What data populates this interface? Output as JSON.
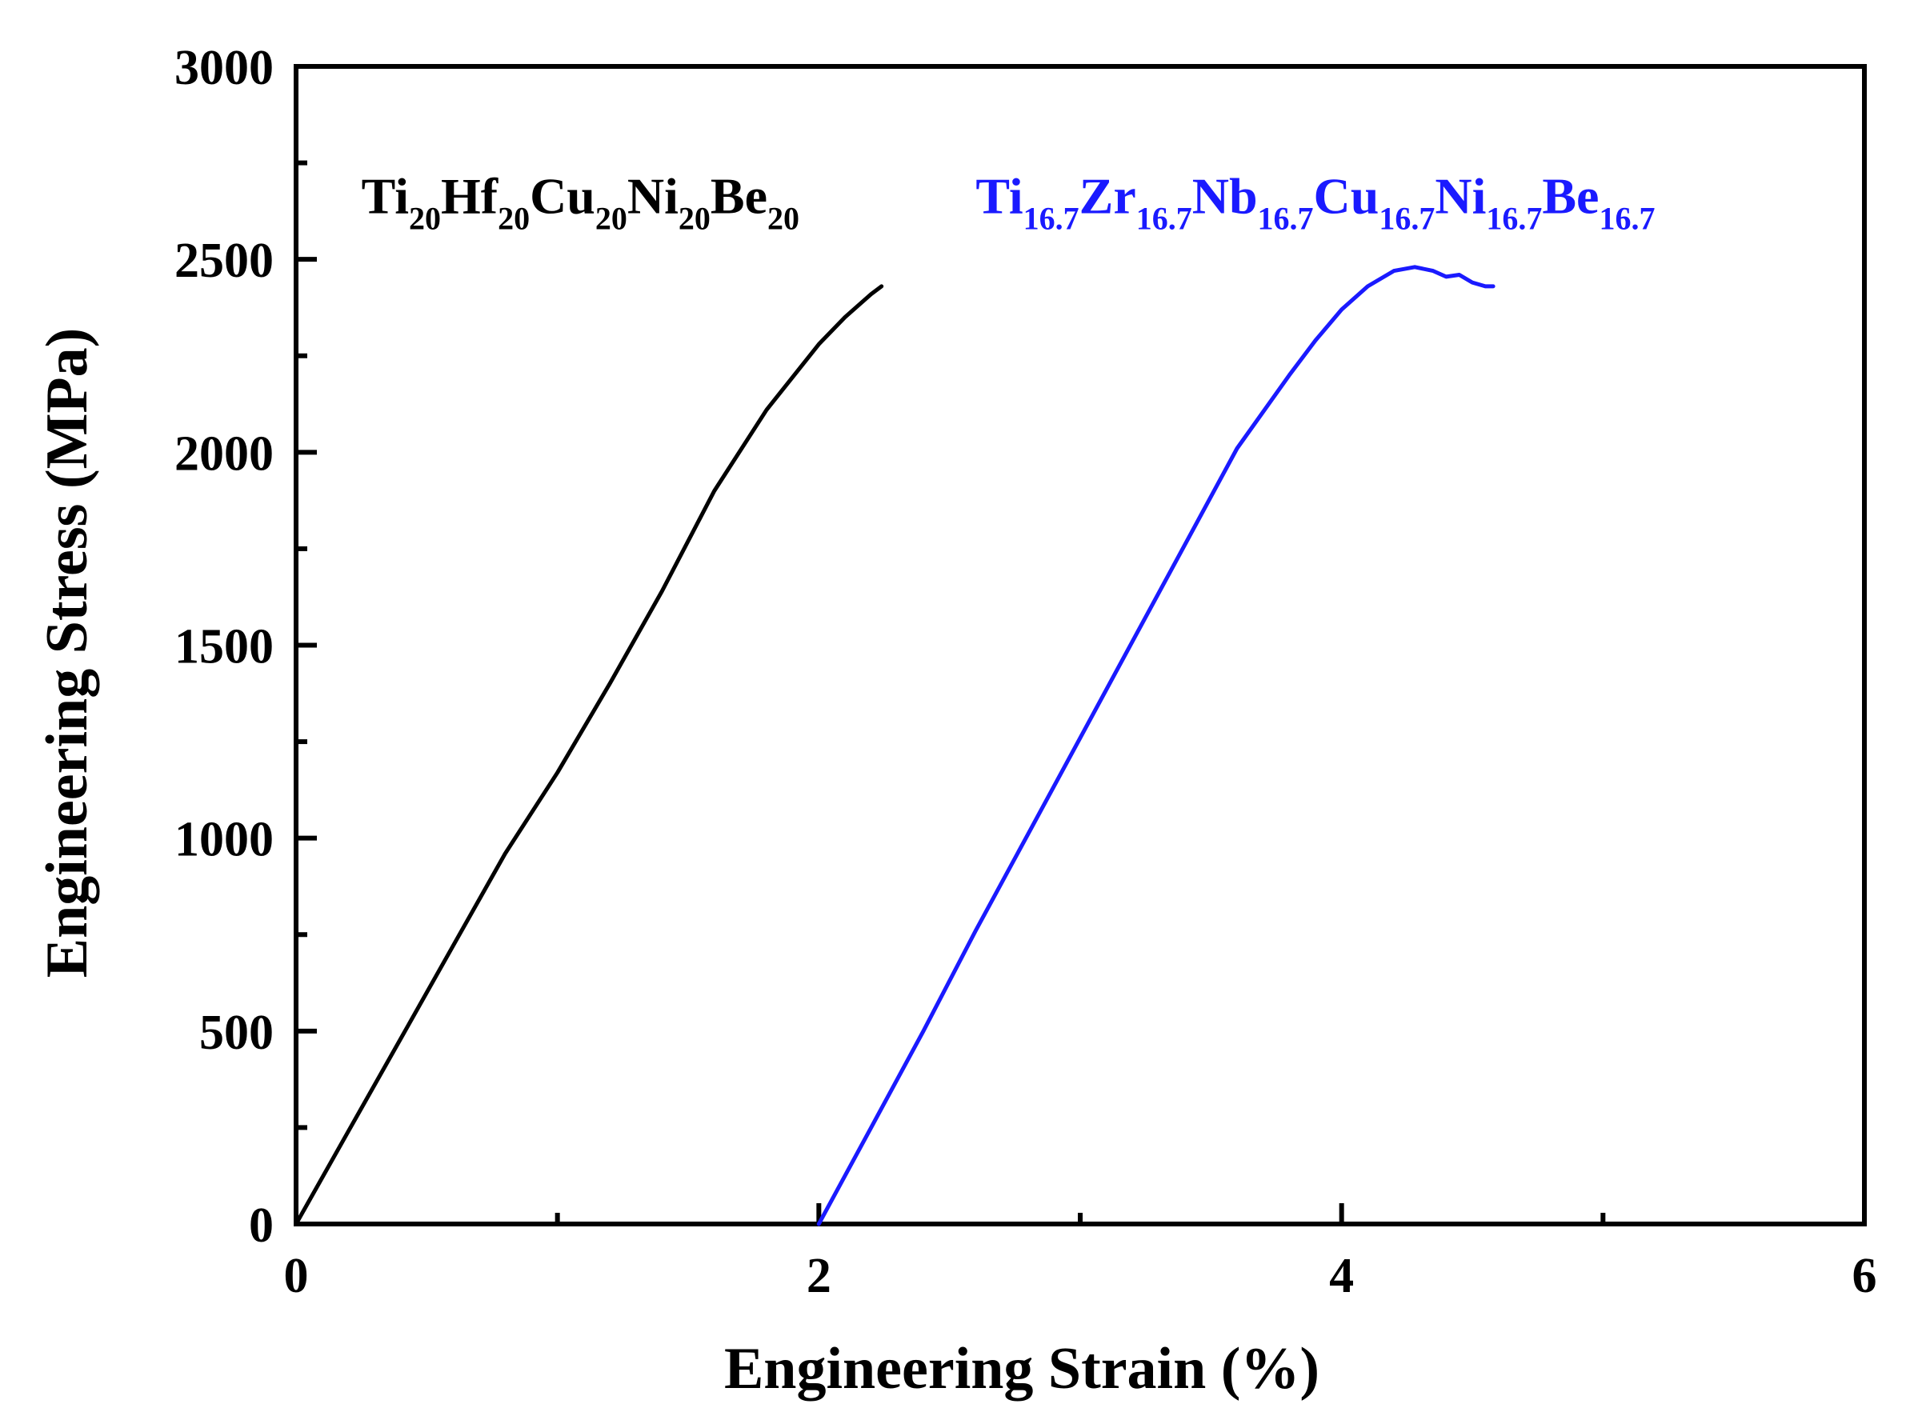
{
  "chart_data": {
    "type": "line",
    "title": "",
    "xlabel": "Engineering Strain (%)",
    "ylabel": "Engineering Stress (MPa)",
    "xlim": [
      0,
      6
    ],
    "ylim": [
      0,
      3000
    ],
    "xticks": [
      0,
      2,
      4,
      6
    ],
    "xtick_labels": [
      "0",
      "2",
      "4",
      "6"
    ],
    "xminor": [
      1,
      3,
      5
    ],
    "yticks": [
      0,
      500,
      1000,
      1500,
      2000,
      2500,
      3000
    ],
    "ytick_labels": [
      "0",
      "500",
      "1000",
      "1500",
      "2000",
      "2500",
      "3000"
    ],
    "yminor": [
      250,
      750,
      1250,
      1750,
      2250,
      2750
    ],
    "grid": false,
    "series": [
      {
        "name": "Ti20Hf20Cu20Ni20Be20",
        "label_parts": [
          {
            "t": "Ti",
            "sub": false
          },
          {
            "t": "20",
            "sub": true
          },
          {
            "t": "Hf",
            "sub": false
          },
          {
            "t": "20",
            "sub": true
          },
          {
            "t": "Cu",
            "sub": false
          },
          {
            "t": "20",
            "sub": true
          },
          {
            "t": "Ni",
            "sub": false
          },
          {
            "t": "20",
            "sub": true
          },
          {
            "t": "Be",
            "sub": false
          },
          {
            "t": "20",
            "sub": true
          }
        ],
        "label_anchor": {
          "x": 0.25,
          "y": 2620
        },
        "color": "#000000",
        "x": [
          0.0,
          0.2,
          0.4,
          0.6,
          0.8,
          1.0,
          1.2,
          1.4,
          1.6,
          1.8,
          2.0,
          2.1,
          2.2,
          2.24
        ],
        "y": [
          0,
          240,
          480,
          720,
          960,
          1170,
          1400,
          1640,
          1900,
          2110,
          2280,
          2350,
          2410,
          2430
        ]
      },
      {
        "name": "Ti16.7Zr16.7Nb16.7Cu16.7Ni16.7Be16.7",
        "label_parts": [
          {
            "t": "Ti",
            "sub": false
          },
          {
            "t": "16.7",
            "sub": true
          },
          {
            "t": "Zr",
            "sub": false
          },
          {
            "t": "16.7",
            "sub": true
          },
          {
            "t": "Nb",
            "sub": false
          },
          {
            "t": "16.7",
            "sub": true
          },
          {
            "t": "Cu",
            "sub": false
          },
          {
            "t": "16.7",
            "sub": true
          },
          {
            "t": "Ni",
            "sub": false
          },
          {
            "t": "16.7",
            "sub": true
          },
          {
            "t": "Be",
            "sub": false
          },
          {
            "t": "16.7",
            "sub": true
          }
        ],
        "label_anchor": {
          "x": 2.6,
          "y": 2620
        },
        "color": "#1a1aff",
        "x": [
          2.0,
          2.2,
          2.4,
          2.6,
          2.8,
          3.0,
          3.2,
          3.4,
          3.6,
          3.8,
          3.9,
          4.0,
          4.1,
          4.2,
          4.28,
          4.35,
          4.4,
          4.45,
          4.5,
          4.55,
          4.58
        ],
        "y": [
          0,
          250,
          500,
          760,
          1010,
          1260,
          1510,
          1760,
          2010,
          2200,
          2290,
          2370,
          2430,
          2470,
          2480,
          2470,
          2455,
          2460,
          2440,
          2430,
          2430
        ]
      }
    ]
  }
}
